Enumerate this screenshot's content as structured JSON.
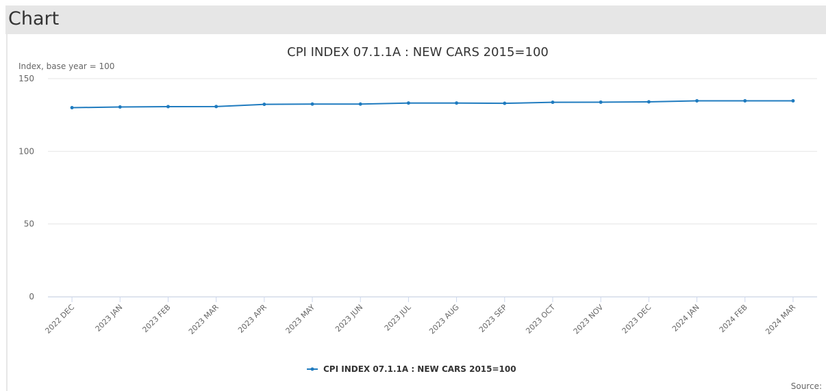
{
  "header": {
    "title": "Chart"
  },
  "source": "Source:",
  "chart_data": {
    "type": "line",
    "title": "CPI INDEX 07.1.1A : NEW CARS 2015=100",
    "y_label": "Index, base year = 100",
    "categories": [
      "2022 DEC",
      "2023 JAN",
      "2023 FEB",
      "2023 MAR",
      "2023 APR",
      "2023 MAY",
      "2023 JUN",
      "2023 JUL",
      "2023 AUG",
      "2023 SEP",
      "2023 OCT",
      "2023 NOV",
      "2023 DEC",
      "2024 JAN",
      "2024 FEB",
      "2024 MAR"
    ],
    "series": [
      {
        "name": "CPI INDEX 07.1.1A : NEW CARS 2015=100",
        "color": "#1f7bbf",
        "values": [
          130.0,
          130.5,
          130.7,
          130.8,
          132.3,
          132.5,
          132.5,
          133.2,
          133.2,
          133.0,
          133.7,
          133.8,
          134.0,
          134.7,
          134.7,
          134.7
        ]
      }
    ],
    "ylim": [
      0,
      150
    ],
    "yticks": [
      0,
      50,
      100,
      150
    ],
    "grid": true,
    "legend": "bottom"
  }
}
